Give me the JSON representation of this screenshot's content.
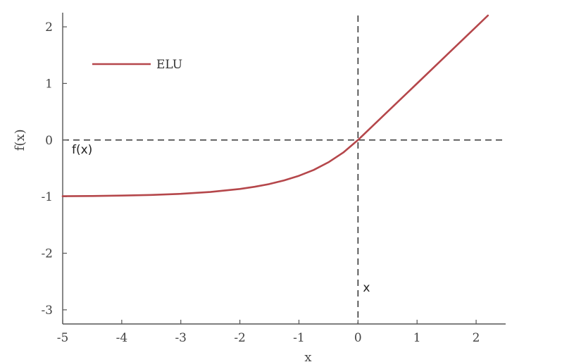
{
  "chart_data": {
    "type": "line",
    "title": "",
    "xlabel": "x",
    "ylabel": "f(x)",
    "xlim": [
      -5,
      2.5
    ],
    "ylim": [
      -3.25,
      2.25
    ],
    "xticks": [
      -5,
      -4,
      -3,
      -2,
      -1,
      0,
      1,
      2
    ],
    "yticks": [
      -3,
      -2,
      -1,
      0,
      1,
      2
    ],
    "grid": false,
    "legend_position": "top-left",
    "series": [
      {
        "name": "ELU",
        "color": "#b5474b",
        "x": [
          -5,
          -4.5,
          -4,
          -3.5,
          -3,
          -2.5,
          -2,
          -1.75,
          -1.5,
          -1.25,
          -1,
          -0.75,
          -0.5,
          -0.25,
          0,
          0.5,
          1,
          1.5,
          2,
          2.2
        ],
        "y": [
          -0.993,
          -0.989,
          -0.982,
          -0.97,
          -0.95,
          -0.918,
          -0.865,
          -0.826,
          -0.777,
          -0.713,
          -0.632,
          -0.528,
          -0.393,
          -0.221,
          0,
          0.5,
          1,
          1.5,
          2,
          2.2
        ]
      }
    ],
    "reference_lines": [
      {
        "orientation": "horizontal",
        "value": 0,
        "style": "dashed"
      },
      {
        "orientation": "vertical",
        "value": 0,
        "style": "dashed"
      }
    ],
    "annotations": [
      {
        "text": "f(x)",
        "x": -5,
        "y": 0
      },
      {
        "text": "x",
        "x": 0,
        "y": -2.6
      }
    ]
  }
}
